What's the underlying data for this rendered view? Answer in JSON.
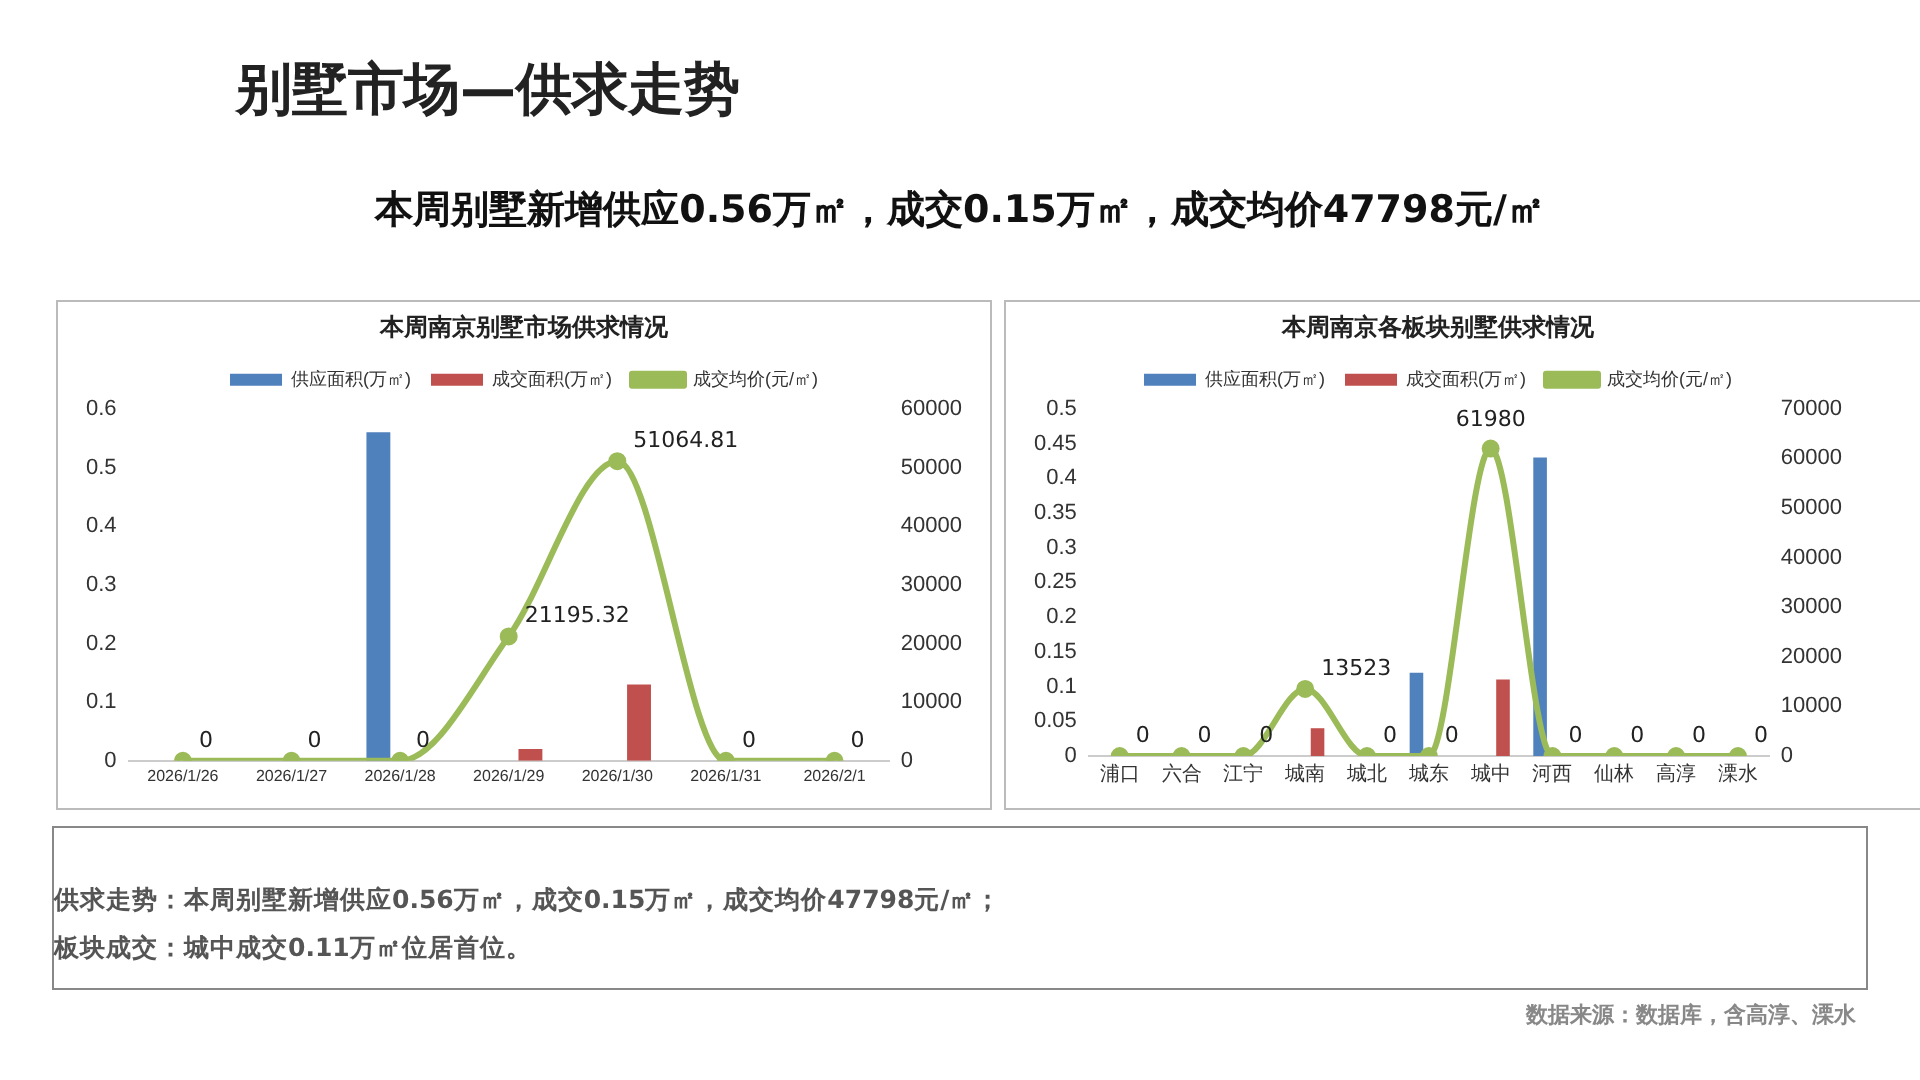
{
  "chart_data": [
    {
      "type": "other",
      "title": "别墅市场—供求走势",
      "subtitle": "本周别墅新增供应0.56万㎡，成交0.15万㎡，成交均价47798元/㎡"
    },
    {
      "type": "bar",
      "title": "本周南京别墅市场供求情况",
      "categories": [
        "2026/1/26",
        "2026/1/27",
        "2026/1/28",
        "2026/1/29",
        "2026/1/30",
        "2026/1/31",
        "2026/2/1"
      ],
      "series": [
        {
          "name": "供应面积(万㎡)",
          "color": "#4f81bd",
          "values": [
            0,
            0,
            0.56,
            0,
            0,
            0,
            0
          ]
        },
        {
          "name": "成交面积(万㎡)",
          "color": "#c0504d",
          "values": [
            0,
            0,
            0,
            0.02,
            0.13,
            0,
            0
          ]
        },
        {
          "type": "line",
          "axis": "y2",
          "name": "成交均价(元/㎡)",
          "color": "#9bbb59",
          "values": [
            0,
            0,
            0,
            21195.32,
            51064.81,
            0,
            0
          ],
          "value_labels": [
            "0",
            "0",
            "0",
            "21195.32",
            "51064.81",
            "0",
            "0"
          ]
        }
      ],
      "ylim": [
        0,
        0.6
      ],
      "yticks": [
        0,
        0.1,
        0.2,
        0.3,
        0.4,
        0.5,
        0.6
      ],
      "y2lim": [
        0,
        60000
      ],
      "y2ticks": [
        0,
        10000,
        20000,
        30000,
        40000,
        50000,
        60000
      ],
      "grid": false,
      "legend": "top",
      "marker": "circle"
    },
    {
      "type": "bar",
      "title": "本周南京各板块别墅供求情况",
      "categories": [
        "浦口",
        "六合",
        "江宁",
        "城南",
        "城北",
        "城东",
        "城中",
        "河西",
        "仙林",
        "高淳",
        "溧水"
      ],
      "series": [
        {
          "name": "供应面积(万㎡)",
          "color": "#4f81bd",
          "values": [
            0,
            0,
            0,
            0,
            0,
            0.12,
            0,
            0.43,
            0,
            0,
            0
          ]
        },
        {
          "name": "成交面积(万㎡)",
          "color": "#c0504d",
          "values": [
            0,
            0,
            0,
            0.04,
            0,
            0,
            0.11,
            0,
            0,
            0,
            0
          ]
        },
        {
          "type": "line",
          "axis": "y2",
          "name": "成交均价(元/㎡)",
          "color": "#9bbb59",
          "values": [
            0,
            0,
            0,
            13523,
            0,
            0,
            61980,
            0,
            0,
            0,
            0
          ],
          "value_labels": [
            "0",
            "0",
            "0",
            "13523",
            "0",
            "0",
            "61980",
            "0",
            "0",
            "0",
            "0"
          ]
        }
      ],
      "ylim": [
        0,
        0.5
      ],
      "yticks": [
        0,
        0.05,
        0.1,
        0.15,
        0.2,
        0.25,
        0.3,
        0.35,
        0.4,
        0.45,
        0.5
      ],
      "y2lim": [
        0,
        70000
      ],
      "y2ticks": [
        0,
        10000,
        20000,
        30000,
        40000,
        50000,
        60000,
        70000
      ],
      "grid": false,
      "legend": "top",
      "marker": "circle"
    },
    {
      "type": "other",
      "annotations": [
        "供求走势：本周别墅新增供应0.56万㎡，成交0.15万㎡，成交均价47798元/㎡；",
        "板块成交：城中成交0.11万㎡位居首位。",
        "数据来源：数据库，含高淳、溧水"
      ]
    }
  ]
}
